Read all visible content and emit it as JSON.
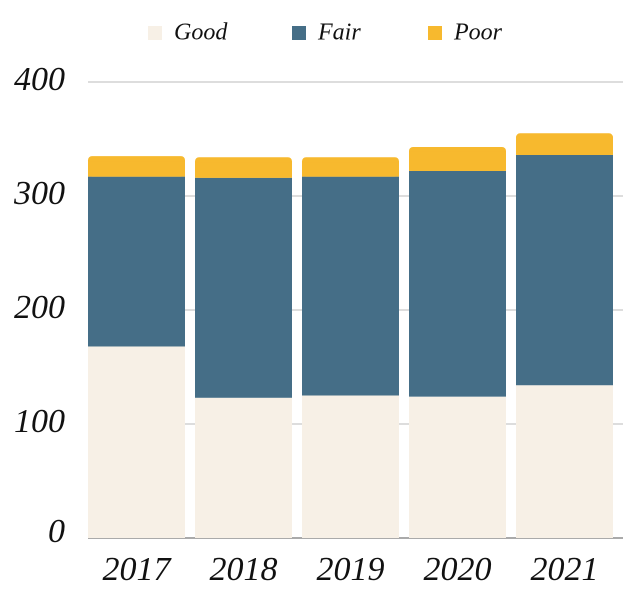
{
  "chart_data": {
    "type": "stacked_bar",
    "categories": [
      "2017",
      "2018",
      "2019",
      "2020",
      "2021"
    ],
    "series": [
      {
        "name": "Good",
        "color": "#f7f0e6",
        "values": [
          168,
          123,
          125,
          124,
          134
        ]
      },
      {
        "name": "Fair",
        "color": "#456e87",
        "values": [
          149,
          193,
          192,
          198,
          202
        ]
      },
      {
        "name": "Poor",
        "color": "#f7b92e",
        "values": [
          18,
          18,
          17,
          21,
          19
        ]
      }
    ],
    "ylim": [
      0,
      400
    ],
    "yticks": [
      0,
      100,
      200,
      300,
      400
    ],
    "grid": true
  }
}
